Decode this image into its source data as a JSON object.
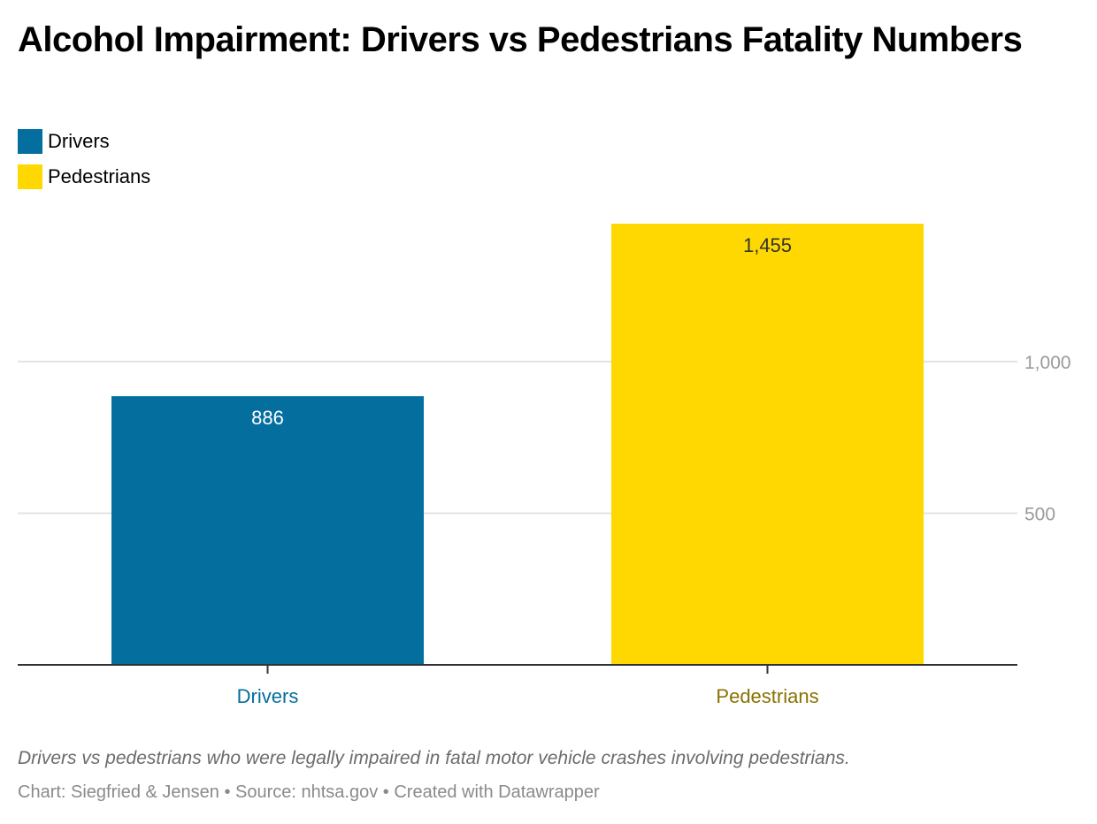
{
  "title": "Alcohol Impairment: Drivers vs Pedestrians Fatality Numbers",
  "legend": [
    {
      "label": "Drivers",
      "color": "#046e9e"
    },
    {
      "label": "Pedestrians",
      "color": "#fed800"
    }
  ],
  "caption": "Drivers vs pedestrians who were legally impaired in fatal motor vehicle crashes involving pedestrians.",
  "credit": "Chart: Siegfried & Jensen • Source: nhtsa.gov • Created with Datawrapper",
  "chart_data": {
    "type": "bar",
    "categories": [
      "Drivers",
      "Pedestrians"
    ],
    "values": [
      886,
      1455
    ],
    "value_labels": [
      "886",
      "1,455"
    ],
    "colors": [
      "#046e9e",
      "#fed800"
    ],
    "category_label_colors": [
      "#046e9e",
      "#8a7100"
    ],
    "value_label_colors": [
      "#ffffff",
      "#333333"
    ],
    "yticks": [
      500,
      1000
    ],
    "ytick_labels": [
      "500",
      "1,000"
    ],
    "ylim": [
      0,
      1455
    ],
    "grid": true,
    "y_axis_position": "right",
    "legend_position": "top-left"
  }
}
